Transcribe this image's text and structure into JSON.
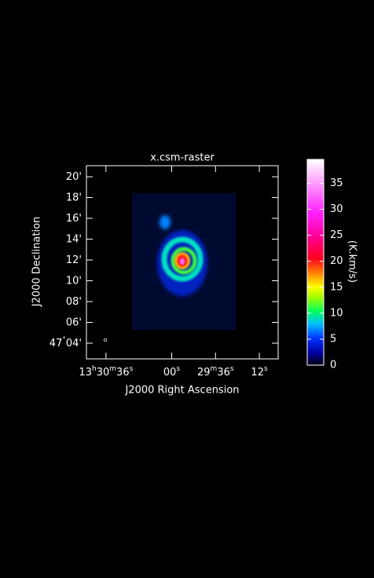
{
  "chart_data": {
    "type": "image",
    "title": "x.csm-raster",
    "x_label": "J2000 Right Ascension",
    "y_label": "J2000 Declination",
    "xlim": [
      1846.7,
      1741.7
    ],
    "xticks": [
      {
        "value": 1836,
        "label": "13h30m36s"
      },
      {
        "value": 1800,
        "label": "00s"
      },
      {
        "value": 1776,
        "label": "29m36s"
      },
      {
        "value": 1752,
        "label": "12s"
      }
    ],
    "ylim": [
      47.0415,
      47.351
    ],
    "yticks": [
      {
        "value": 47.0667,
        "label": "47°04'"
      },
      {
        "value": 47.1,
        "label": "06'"
      },
      {
        "value": 47.1333,
        "label": "08'"
      },
      {
        "value": 47.1667,
        "label": "10'"
      },
      {
        "value": 47.2,
        "label": "12'"
      },
      {
        "value": 47.2333,
        "label": "14'"
      },
      {
        "value": 47.2667,
        "label": "16'"
      },
      {
        "value": 47.3,
        "label": "18'"
      },
      {
        "value": 47.3333,
        "label": "20'"
      }
    ],
    "colorbar": {
      "label": "(K.km/s)",
      "lim": [
        0,
        39.6
      ],
      "ticks": [
        0,
        5,
        10,
        15,
        20,
        25,
        30,
        35
      ]
    }
  }
}
